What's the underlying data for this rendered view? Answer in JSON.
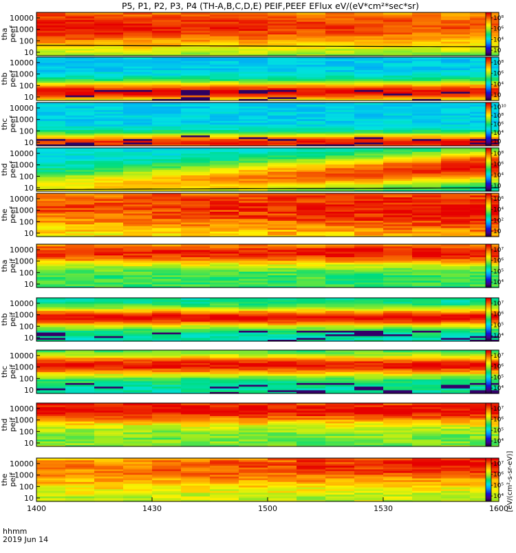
{
  "chart_data": {
    "type": "heatmap",
    "title": "P5, P1, P2, P3, P4 (TH-A,B,C,D,E) PEIF,PEEF EFlux eV/(eV*cm²*sec*sr)",
    "xlabel": "hhmm",
    "date_label": "2019 Jun 14",
    "x_ticks": [
      "1400",
      "1430",
      "1500",
      "1530",
      "1600"
    ],
    "xlim": [
      "14:00",
      "16:00"
    ],
    "y_ticks": [
      "10",
      "100",
      "1000",
      "10000"
    ],
    "y_scale": "log",
    "ylim": [
      5,
      30000
    ],
    "colorscale": "rainbow (purple-blue-cyan-green-yellow-orange-red)",
    "colorbar_units": "[eV/(cm²-s-sr-eV)]",
    "panels": [
      {
        "probe": "tha",
        "product": "peef",
        "ylabel": [
          "tha",
          "peef"
        ],
        "cbar": [
          "10",
          "10⁴",
          "10⁶",
          "10⁸"
        ],
        "peak_log_min": 7.6,
        "peak_log_max": 7.2,
        "peak_energy_start": 2000,
        "peak_energy_end": 2000,
        "width": 2.2,
        "bg_log": 5.5,
        "line_energy_start": 40,
        "line_energy_end": 30
      },
      {
        "probe": "thb",
        "product": "peef",
        "ylabel": [
          "thb",
          "peef"
        ],
        "cbar": [
          "10",
          "10⁴",
          "10⁶",
          "10⁸"
        ],
        "peak_log_min": 6.6,
        "peak_log_max": 6.6,
        "peak_energy_start": 30,
        "peak_energy_end": 30,
        "width": 0.9,
        "bg_log": 3.2,
        "dark_rows": true
      },
      {
        "probe": "thc",
        "product": "peef",
        "ylabel": [
          "thc",
          "peef"
        ],
        "cbar": [
          "10",
          "10⁴",
          "10⁶",
          "10⁸",
          "10¹⁰"
        ],
        "peak_log_min": 6.0,
        "peak_log_max": 6.3,
        "peak_energy_start": 10,
        "peak_energy_end": 10,
        "width": 0.8,
        "bg_log": 3.0,
        "dark_rows": true
      },
      {
        "probe": "thd",
        "product": "peef",
        "ylabel": [
          "thd",
          "peef"
        ],
        "cbar": [
          "10",
          "10⁴",
          "10⁶",
          "10⁸"
        ],
        "peak_log_min": 6.4,
        "peak_log_max": 7.8,
        "peak_energy_start": 10,
        "peak_energy_end": 800,
        "width": 1.4,
        "bg_log": 4.8,
        "line_energy_start": 7,
        "line_energy_end": 10
      },
      {
        "probe": "the",
        "product": "peef",
        "ylabel": [
          "the",
          "peef"
        ],
        "cbar": [
          "10",
          "10²",
          "10⁴",
          "10⁶"
        ],
        "peak_log_min": 5.5,
        "peak_log_max": 5.8,
        "peak_energy_start": 3000,
        "peak_energy_end": 1000,
        "width": 2.5,
        "bg_log": 4.6
      },
      {
        "probe": "tha",
        "product": "peif",
        "ylabel": [
          "tha",
          "peif"
        ],
        "cbar": [
          "10⁴",
          "10⁵",
          "10⁶",
          "10⁷"
        ],
        "peak_log_min": 6.5,
        "peak_log_max": 6.7,
        "peak_energy_start": 6000,
        "peak_energy_end": 6000,
        "width": 1.1,
        "bg_log": 4.9
      },
      {
        "probe": "thb",
        "product": "peif",
        "ylabel": [
          "thb",
          "peif"
        ],
        "cbar": [
          "10⁴",
          "10⁵",
          "10⁶",
          "10⁷"
        ],
        "peak_log_min": 7.2,
        "peak_log_max": 7.2,
        "peak_energy_start": 600,
        "peak_energy_end": 600,
        "width": 0.8,
        "bg_log": 4.8,
        "dark_rows": true
      },
      {
        "probe": "thc",
        "product": "peif",
        "ylabel": [
          "thc",
          "peif"
        ],
        "cbar": [
          "10⁴",
          "10⁵",
          "10⁶",
          "10⁷"
        ],
        "peak_log_min": 6.9,
        "peak_log_max": 6.8,
        "peak_energy_start": 1500,
        "peak_energy_end": 1500,
        "width": 0.9,
        "bg_log": 4.6,
        "dark_rows": true
      },
      {
        "probe": "thd",
        "product": "peif",
        "ylabel": [
          "thd",
          "peif"
        ],
        "cbar": [
          "10⁴",
          "10⁵",
          "10⁶",
          "10⁷"
        ],
        "peak_log_min": 6.4,
        "peak_log_max": 6.4,
        "peak_energy_start": 8000,
        "peak_energy_end": 8000,
        "width": 1.2,
        "bg_log": 5.0
      },
      {
        "probe": "the",
        "product": "peif",
        "ylabel": [
          "the",
          "peif"
        ],
        "cbar": [
          "10⁴",
          "10⁵",
          "10⁶",
          "10⁷"
        ],
        "peak_log_min": 5.8,
        "peak_log_max": 6.3,
        "peak_energy_start": 3000,
        "peak_energy_end": 10000,
        "width": 1.8,
        "bg_log": 5.1
      }
    ]
  }
}
